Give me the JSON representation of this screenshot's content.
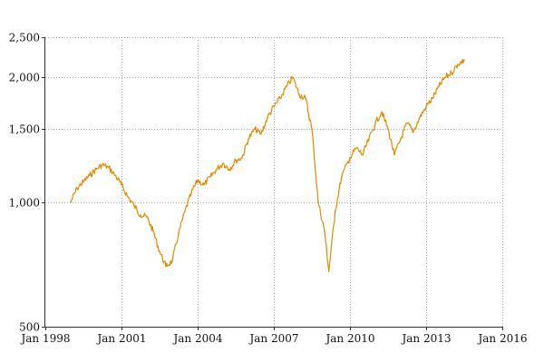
{
  "chart_data": {
    "type": "line",
    "title": "",
    "xlabel": "",
    "ylabel": "",
    "y_scale": "log",
    "ylim": [
      500,
      2500
    ],
    "xlim": [
      "1998-01",
      "2016-01"
    ],
    "grid": true,
    "x_ticks": [
      "Jan 1998",
      "Jan 2001",
      "Jan 2004",
      "Jan 2007",
      "Jan 2010",
      "Jan 2013",
      "Jan 2016"
    ],
    "y_ticks": [
      "500",
      "1,000",
      "1,500",
      "2,000",
      "2,500"
    ],
    "y_tick_values": [
      500,
      1000,
      1500,
      2000,
      2500
    ],
    "series": [
      {
        "color": "#e38b00",
        "x": [
          "1999-01",
          "1999-04",
          "1999-07",
          "1999-10",
          "2000-01",
          "2000-04",
          "2000-07",
          "2000-10",
          "2001-01",
          "2001-04",
          "2001-07",
          "2001-10",
          "2002-01",
          "2002-04",
          "2002-07",
          "2002-10",
          "2003-01",
          "2003-04",
          "2003-07",
          "2003-10",
          "2004-01",
          "2004-04",
          "2004-07",
          "2004-10",
          "2005-01",
          "2005-04",
          "2005-07",
          "2005-10",
          "2006-01",
          "2006-04",
          "2006-07",
          "2006-10",
          "2007-01",
          "2007-04",
          "2007-07",
          "2007-10",
          "2008-01",
          "2008-04",
          "2008-07",
          "2008-10",
          "2009-01",
          "2009-03",
          "2009-06",
          "2009-09",
          "2010-01",
          "2010-04",
          "2010-07",
          "2010-10",
          "2011-01",
          "2011-04",
          "2011-07",
          "2011-10",
          "2012-01",
          "2012-04",
          "2012-07",
          "2012-10",
          "2013-01",
          "2013-04",
          "2013-07",
          "2013-10",
          "2014-01",
          "2014-04",
          "2014-07"
        ],
        "values": [
          1000,
          1080,
          1120,
          1160,
          1200,
          1230,
          1210,
          1160,
          1100,
          1030,
          980,
          930,
          920,
          850,
          760,
          700,
          720,
          840,
          950,
          1050,
          1130,
          1100,
          1150,
          1200,
          1240,
          1200,
          1260,
          1280,
          1420,
          1500,
          1460,
          1600,
          1700,
          1780,
          1900,
          2000,
          1820,
          1780,
          1500,
          1000,
          850,
          680,
          950,
          1150,
          1280,
          1350,
          1300,
          1420,
          1550,
          1650,
          1500,
          1300,
          1420,
          1550,
          1480,
          1600,
          1700,
          1780,
          1900,
          2000,
          2050,
          2150,
          2200
        ]
      }
    ]
  }
}
